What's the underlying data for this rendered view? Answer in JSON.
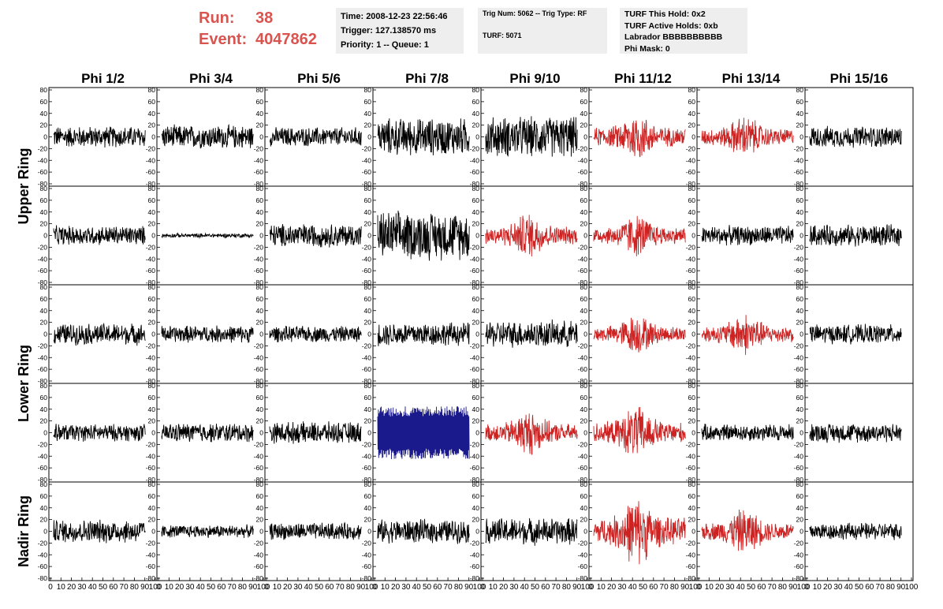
{
  "run_info": {
    "run_label": "Run:",
    "run_value": "38",
    "event_label": "Event:",
    "event_value": "4047862"
  },
  "time_box": {
    "time": "Time: 2008-12-23 22:56:46",
    "trigger": "Trigger: 127.138570 ms",
    "priority": "Priority: 1 -- Queue: 1"
  },
  "trig_box": {
    "trig": "Trig Num: 5062 -- Trig Type: RF",
    "turf": "TURF: 5071"
  },
  "turf_box": {
    "this_hold": "TURF This Hold: 0x2",
    "active_holds": "TURF Active Holds: 0xb",
    "labrador": "Labrador BBBBBBBBBB",
    "phi_mask": "Phi Mask: 0"
  },
  "colors": {
    "normal": "#000000",
    "triggered": "#cc2222",
    "highlight": "#1a1a8c",
    "run_text": "#d9534f",
    "box_bg": "#eeeeee"
  },
  "chart_data": {
    "type": "line",
    "columns": [
      "Phi 1/2",
      "Phi 3/4",
      "Phi 5/6",
      "Phi 7/8",
      "Phi 9/10",
      "Phi 11/12",
      "Phi 13/14",
      "Phi 15/16"
    ],
    "rows": [
      "Upper Ring",
      "Upper Ring",
      "Lower Ring",
      "Lower Ring",
      "Nadir Ring"
    ],
    "row_labels": [
      "Upper Ring",
      "Lower Ring",
      "Nadir Ring"
    ],
    "xlim": [
      0,
      100
    ],
    "ylim": [
      -80,
      80
    ],
    "x_tick_labels": [
      "0",
      "10",
      "20",
      "30",
      "40",
      "50",
      "60",
      "70",
      "80",
      "90",
      "100"
    ],
    "y_tick_labels": [
      "80",
      "60",
      "40",
      "20",
      "0",
      "-20",
      "-40",
      "-60",
      "-80"
    ],
    "panels": [
      [
        "normal",
        "normal",
        "normal",
        "normal",
        "normal",
        "triggered",
        "triggered",
        "normal"
      ],
      [
        "normal",
        "normal",
        "normal",
        "normal",
        "triggered",
        "triggered",
        "normal",
        "normal"
      ],
      [
        "normal",
        "normal",
        "normal",
        "normal",
        "normal",
        "triggered",
        "triggered",
        "normal"
      ],
      [
        "normal",
        "normal",
        "normal",
        "highlight",
        "triggered",
        "triggered",
        "normal",
        "normal"
      ],
      [
        "normal",
        "normal",
        "normal",
        "normal",
        "normal",
        "triggered",
        "triggered",
        "normal"
      ]
    ],
    "amplitudes": [
      [
        20,
        22,
        18,
        35,
        38,
        32,
        28,
        20
      ],
      [
        18,
        4,
        22,
        45,
        30,
        28,
        18,
        20
      ],
      [
        20,
        16,
        15,
        22,
        25,
        26,
        28,
        18
      ],
      [
        16,
        18,
        20,
        45,
        30,
        35,
        16,
        18
      ],
      [
        22,
        12,
        16,
        22,
        25,
        45,
        30,
        16
      ]
    ]
  }
}
